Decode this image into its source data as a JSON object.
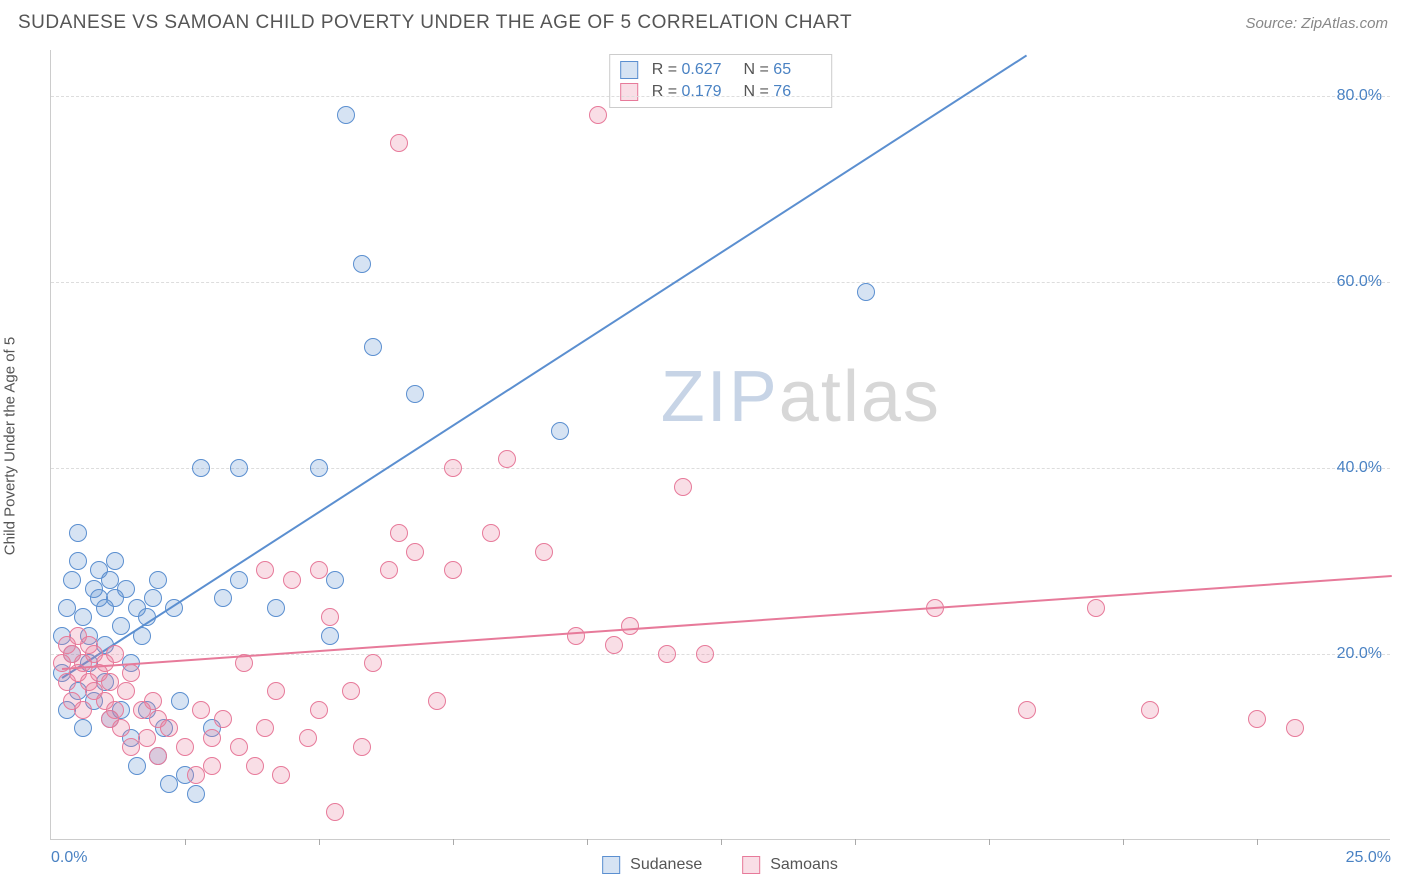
{
  "header": {
    "title": "SUDANESE VS SAMOAN CHILD POVERTY UNDER THE AGE OF 5 CORRELATION CHART",
    "source": "Source: ZipAtlas.com"
  },
  "chart": {
    "type": "scatter",
    "ylabel": "Child Poverty Under the Age of 5",
    "background_color": "#ffffff",
    "grid_color": "#dddddd",
    "axis_color": "#cccccc",
    "label_color": "#4a82c3",
    "xlim": [
      0,
      25
    ],
    "ylim": [
      0,
      85
    ],
    "yticks": [
      {
        "v": 20,
        "label": "20.0%"
      },
      {
        "v": 40,
        "label": "40.0%"
      },
      {
        "v": 60,
        "label": "60.0%"
      },
      {
        "v": 80,
        "label": "80.0%"
      }
    ],
    "xtick_start_label": "0.0%",
    "xtick_end_label": "25.0%",
    "xtick_step": 2.5,
    "marker_radius": 9,
    "marker_fill_opacity": 0.25,
    "marker_stroke_width": 1.5,
    "watermark": {
      "part1": "ZIP",
      "part2": "atlas"
    },
    "series": [
      {
        "name": "Sudanese",
        "color": "#5b8fd0",
        "fill": "rgba(91,143,208,0.25)",
        "r_value": "0.627",
        "n_value": "65",
        "trend": {
          "x1": 0.2,
          "y1": 17.5,
          "x2": 18.2,
          "y2": 84.5
        },
        "points": [
          [
            0.2,
            18
          ],
          [
            0.2,
            22
          ],
          [
            0.3,
            25
          ],
          [
            0.3,
            14
          ],
          [
            0.4,
            20
          ],
          [
            0.4,
            28
          ],
          [
            0.5,
            16
          ],
          [
            0.5,
            30
          ],
          [
            0.5,
            33
          ],
          [
            0.6,
            12
          ],
          [
            0.6,
            24
          ],
          [
            0.7,
            19
          ],
          [
            0.7,
            22
          ],
          [
            0.8,
            15
          ],
          [
            0.8,
            27
          ],
          [
            0.9,
            26
          ],
          [
            0.9,
            29
          ],
          [
            1.0,
            17
          ],
          [
            1.0,
            21
          ],
          [
            1.0,
            25
          ],
          [
            1.1,
            13
          ],
          [
            1.1,
            28
          ],
          [
            1.2,
            26
          ],
          [
            1.2,
            30
          ],
          [
            1.3,
            23
          ],
          [
            1.3,
            14
          ],
          [
            1.4,
            27
          ],
          [
            1.5,
            19
          ],
          [
            1.5,
            11
          ],
          [
            1.6,
            25
          ],
          [
            1.6,
            8
          ],
          [
            1.7,
            22
          ],
          [
            1.8,
            24
          ],
          [
            1.8,
            14
          ],
          [
            1.9,
            26
          ],
          [
            2.0,
            9
          ],
          [
            2.0,
            28
          ],
          [
            2.1,
            12
          ],
          [
            2.2,
            6
          ],
          [
            2.3,
            25
          ],
          [
            2.4,
            15
          ],
          [
            2.5,
            7
          ],
          [
            2.7,
            5
          ],
          [
            2.8,
            40
          ],
          [
            3.0,
            12
          ],
          [
            3.2,
            26
          ],
          [
            3.5,
            40
          ],
          [
            3.5,
            28
          ],
          [
            4.2,
            25
          ],
          [
            5.0,
            40
          ],
          [
            5.2,
            22
          ],
          [
            5.3,
            28
          ],
          [
            5.5,
            78
          ],
          [
            5.8,
            62
          ],
          [
            6.0,
            53
          ],
          [
            6.8,
            48
          ],
          [
            9.5,
            44
          ],
          [
            15.2,
            59
          ]
        ]
      },
      {
        "name": "Samoans",
        "color": "#e77a9a",
        "fill": "rgba(231,122,154,0.25)",
        "r_value": "0.179",
        "n_value": "76",
        "trend": {
          "x1": 0.2,
          "y1": 18.5,
          "x2": 25.0,
          "y2": 28.5
        },
        "points": [
          [
            0.2,
            19
          ],
          [
            0.3,
            17
          ],
          [
            0.3,
            21
          ],
          [
            0.4,
            15
          ],
          [
            0.4,
            20
          ],
          [
            0.5,
            18
          ],
          [
            0.5,
            22
          ],
          [
            0.6,
            14
          ],
          [
            0.6,
            19
          ],
          [
            0.7,
            17
          ],
          [
            0.7,
            21
          ],
          [
            0.8,
            16
          ],
          [
            0.8,
            20
          ],
          [
            0.9,
            18
          ],
          [
            1.0,
            15
          ],
          [
            1.0,
            19
          ],
          [
            1.1,
            13
          ],
          [
            1.1,
            17
          ],
          [
            1.2,
            14
          ],
          [
            1.2,
            20
          ],
          [
            1.3,
            12
          ],
          [
            1.4,
            16
          ],
          [
            1.5,
            18
          ],
          [
            1.5,
            10
          ],
          [
            1.7,
            14
          ],
          [
            1.8,
            11
          ],
          [
            1.9,
            15
          ],
          [
            2.0,
            13
          ],
          [
            2.0,
            9
          ],
          [
            2.2,
            12
          ],
          [
            2.5,
            10
          ],
          [
            2.7,
            7
          ],
          [
            2.8,
            14
          ],
          [
            3.0,
            11
          ],
          [
            3.0,
            8
          ],
          [
            3.2,
            13
          ],
          [
            3.5,
            10
          ],
          [
            3.6,
            19
          ],
          [
            3.8,
            8
          ],
          [
            4.0,
            12
          ],
          [
            4.0,
            29
          ],
          [
            4.2,
            16
          ],
          [
            4.3,
            7
          ],
          [
            4.5,
            28
          ],
          [
            4.8,
            11
          ],
          [
            5.0,
            14
          ],
          [
            5.0,
            29
          ],
          [
            5.2,
            24
          ],
          [
            5.3,
            3
          ],
          [
            5.6,
            16
          ],
          [
            5.8,
            10
          ],
          [
            6.0,
            19
          ],
          [
            6.3,
            29
          ],
          [
            6.5,
            33
          ],
          [
            6.5,
            75
          ],
          [
            6.8,
            31
          ],
          [
            7.2,
            15
          ],
          [
            7.5,
            29
          ],
          [
            7.5,
            40
          ],
          [
            8.2,
            33
          ],
          [
            8.5,
            41
          ],
          [
            9.2,
            31
          ],
          [
            9.8,
            22
          ],
          [
            10.2,
            78
          ],
          [
            10.5,
            21
          ],
          [
            10.8,
            23
          ],
          [
            11.5,
            20
          ],
          [
            11.8,
            38
          ],
          [
            12.2,
            20
          ],
          [
            16.5,
            25
          ],
          [
            18.2,
            14
          ],
          [
            19.5,
            25
          ],
          [
            20.5,
            14
          ],
          [
            22.5,
            13
          ],
          [
            23.2,
            12
          ]
        ]
      }
    ]
  }
}
